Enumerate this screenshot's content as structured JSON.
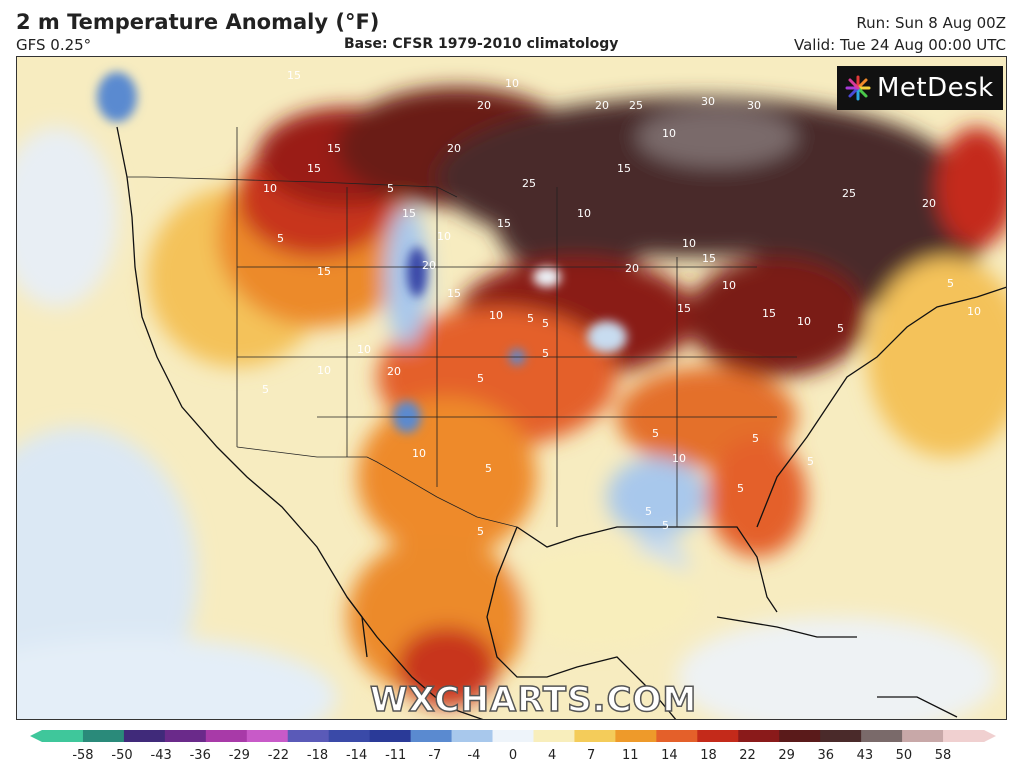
{
  "header": {
    "title": "2 m Temperature Anomaly (°F)",
    "subtitle": "GFS 0.25°",
    "base": "Base: CFSR 1979-2010 climatology",
    "run": "Run: Sun 8 Aug 00Z",
    "valid": "Valid: Tue 24 Aug 00:00 UTC"
  },
  "logo": {
    "text": "MetDesk"
  },
  "watermark": {
    "text": "WXCHARTS.COM"
  },
  "legend": {
    "ticks": [
      "-58",
      "-50",
      "-43",
      "-36",
      "-29",
      "-22",
      "-18",
      "-14",
      "-11",
      "-7",
      "-4",
      "0",
      "4",
      "7",
      "11",
      "14",
      "18",
      "22",
      "29",
      "36",
      "43",
      "50",
      "58"
    ],
    "colors": [
      "#3fc79b",
      "#2a8a7a",
      "#402a7a",
      "#6a2a8a",
      "#a83aa8",
      "#c85ac8",
      "#5a5ab8",
      "#3a4aa8",
      "#2a3a98",
      "#5a8ad0",
      "#a8c8ec",
      "#eef4fa",
      "#f8eebc",
      "#f4cc5a",
      "#ee9a2a",
      "#e4602a",
      "#c42a1a",
      "#8a1a1a",
      "#5a1a1a",
      "#4a2a2a",
      "#7a6a6a",
      "#c8a8a8",
      "#f0d0d0"
    ]
  },
  "map": {
    "contour_labels": [
      "15",
      "20",
      "10",
      "20",
      "25",
      "30",
      "30",
      "15",
      "20",
      "10",
      "25",
      "15",
      "15",
      "10",
      "5",
      "10",
      "15",
      "5",
      "10",
      "15",
      "20",
      "10",
      "15",
      "25",
      "20",
      "10",
      "15",
      "20",
      "15",
      "5",
      "10",
      "5",
      "15",
      "15",
      "10",
      "10",
      "5",
      "5",
      "5",
      "5",
      "10",
      "5",
      "10",
      "20",
      "10",
      "5",
      "5",
      "5",
      "10",
      "5",
      "5",
      "5",
      "5",
      "5"
    ]
  }
}
